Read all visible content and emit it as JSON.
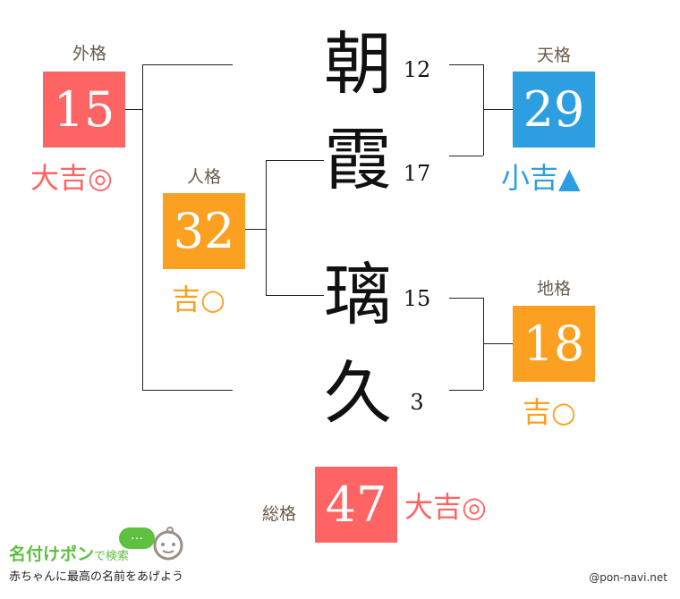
{
  "colors": {
    "great": "#ff6464",
    "good": "#fba020",
    "small": "#2d9fe0",
    "label": "#6b5a4c",
    "logo_green": "#5dc03e"
  },
  "name": [
    {
      "char": "朝",
      "strokes": "12"
    },
    {
      "char": "霞",
      "strokes": "17"
    },
    {
      "char": "璃",
      "strokes": "15"
    },
    {
      "char": "久",
      "strokes": "3"
    }
  ],
  "gaikaku": {
    "label": "外格",
    "value": "15",
    "fortune": "大吉◎"
  },
  "jinkaku": {
    "label": "人格",
    "value": "32",
    "fortune": "吉○"
  },
  "tenkaku": {
    "label": "天格",
    "value": "29",
    "fortune": "小吉▲"
  },
  "chikaku": {
    "label": "地格",
    "value": "18",
    "fortune": "吉○"
  },
  "soukaku": {
    "label": "総格",
    "value": "47",
    "fortune": "大吉◎"
  },
  "footer": {
    "logo_main": "名付けポン",
    "logo_sub": "で検索",
    "tagline": "赤ちゃんに最高の名前をあげよう",
    "bubble": "…",
    "credit": "@pon-navi.net"
  }
}
